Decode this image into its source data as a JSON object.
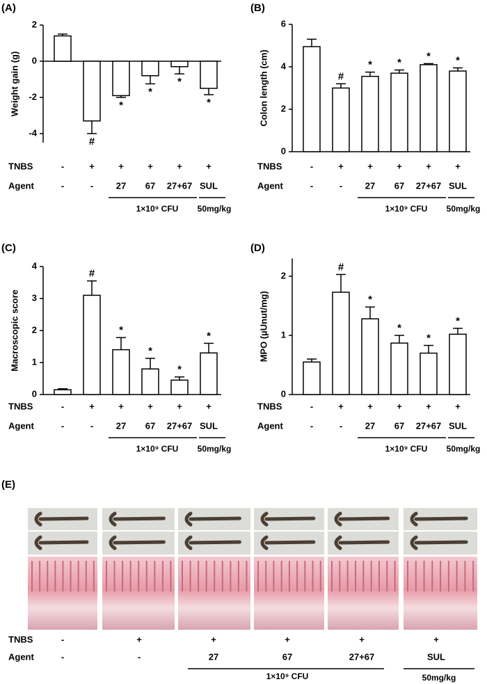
{
  "chart_data": [
    {
      "type": "bar",
      "title": "(A)",
      "ylabel": "Weight gain (g)",
      "ylim": [
        -4.5,
        2
      ],
      "yticks": [
        -4,
        -2,
        0,
        2
      ],
      "color": "#ffffff",
      "values": [
        1.4,
        -3.3,
        -1.9,
        -0.8,
        -0.3,
        -1.5
      ],
      "errors": [
        0.1,
        0.7,
        0.1,
        0.45,
        0.4,
        0.35
      ],
      "annotations": [
        null,
        "#",
        "*",
        "*",
        "*",
        "*"
      ],
      "row_labels": [
        "TNBS",
        "Agent"
      ],
      "tnbs": [
        "-",
        "+",
        "+",
        "+",
        "+",
        "+"
      ],
      "agent": [
        "-",
        "-",
        "27",
        "67",
        "27+67",
        "SUL"
      ],
      "group_labels": [
        "1×10⁹ CFU",
        "50mg/kg"
      ]
    },
    {
      "type": "bar",
      "title": "(B)",
      "ylabel": "Colon length (cm)",
      "ylim": [
        0,
        6
      ],
      "yticks": [
        0,
        2,
        4,
        6
      ],
      "color": "#ffffff",
      "values": [
        4.95,
        3.0,
        3.55,
        3.7,
        4.1,
        3.8
      ],
      "errors": [
        0.35,
        0.2,
        0.2,
        0.15,
        0.05,
        0.15
      ],
      "annotations": [
        null,
        "#",
        "*",
        "*",
        "*",
        "*"
      ],
      "row_labels": [
        "TNBS",
        "Agent"
      ],
      "tnbs": [
        "-",
        "+",
        "+",
        "+",
        "+",
        "+"
      ],
      "agent": [
        "-",
        "-",
        "27",
        "67",
        "27+67",
        "SUL"
      ],
      "group_labels": [
        "1×10⁹ CFU",
        "50mg/kg"
      ]
    },
    {
      "type": "bar",
      "title": "(C)",
      "ylabel": "Macroscopic score",
      "ylim": [
        0,
        4
      ],
      "yticks": [
        0,
        1,
        2,
        3,
        4
      ],
      "color": "#ffffff",
      "values": [
        0.15,
        3.1,
        1.4,
        0.8,
        0.45,
        1.3
      ],
      "errors": [
        0.03,
        0.45,
        0.38,
        0.33,
        0.1,
        0.3
      ],
      "annotations": [
        null,
        "#",
        "*",
        "*",
        "*",
        "*"
      ],
      "row_labels": [
        "TNBS",
        "Agent"
      ],
      "tnbs": [
        "-",
        "+",
        "+",
        "+",
        "+",
        "+"
      ],
      "agent": [
        "-",
        "-",
        "27",
        "67",
        "27+67",
        "SUL"
      ],
      "group_labels": [
        "1×10⁹ CFU",
        "50mg/kg"
      ]
    },
    {
      "type": "bar",
      "title": "(D)",
      "ylabel": "MPO (µUnut/mg)",
      "ylim": [
        0,
        2.3
      ],
      "yticks": [
        0,
        1,
        2
      ],
      "color": "#ffffff",
      "values": [
        0.55,
        1.73,
        1.28,
        0.87,
        0.7,
        1.02
      ],
      "errors": [
        0.05,
        0.3,
        0.2,
        0.13,
        0.13,
        0.1
      ],
      "annotations": [
        null,
        "#",
        "*",
        "*",
        "*",
        "*"
      ],
      "row_labels": [
        "TNBS",
        "Agent"
      ],
      "tnbs": [
        "-",
        "+",
        "+",
        "+",
        "+",
        "+"
      ],
      "agent": [
        "-",
        "-",
        "27",
        "67",
        "27+67",
        "SUL"
      ],
      "group_labels": [
        "1×10⁹ CFU",
        "50mg/kg"
      ]
    }
  ],
  "panel_e": {
    "title": "(E)",
    "row_labels": [
      "TNBS",
      "Agent"
    ],
    "tnbs": [
      "-",
      "+",
      "+",
      "+",
      "+",
      "+"
    ],
    "agent": [
      "-",
      "-",
      "27",
      "67",
      "27+67",
      "SUL"
    ],
    "group_labels": [
      "1×10⁹ CFU",
      "50mg/kg"
    ]
  }
}
